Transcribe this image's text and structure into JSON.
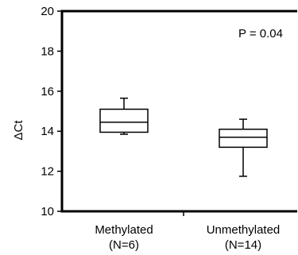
{
  "chart_data": {
    "type": "box",
    "ylabel": "ΔCt",
    "ylim": [
      10,
      20
    ],
    "yticks": [
      10,
      12,
      14,
      16,
      18,
      20
    ],
    "grid": false,
    "annotation": "P = 0.04",
    "categories": [
      {
        "line1": "Methylated",
        "line2": "(N=6)"
      },
      {
        "line1": "Unmethylated",
        "line2": "(N=14)"
      }
    ],
    "boxes": [
      {
        "category": "Methylated",
        "whisker_low": 13.85,
        "q1": 13.95,
        "median": 14.45,
        "q3": 15.1,
        "whisker_high": 15.65
      },
      {
        "category": "Unmethylated",
        "whisker_low": 11.75,
        "q1": 13.2,
        "median": 13.7,
        "q3": 14.1,
        "whisker_high": 14.6
      }
    ]
  }
}
